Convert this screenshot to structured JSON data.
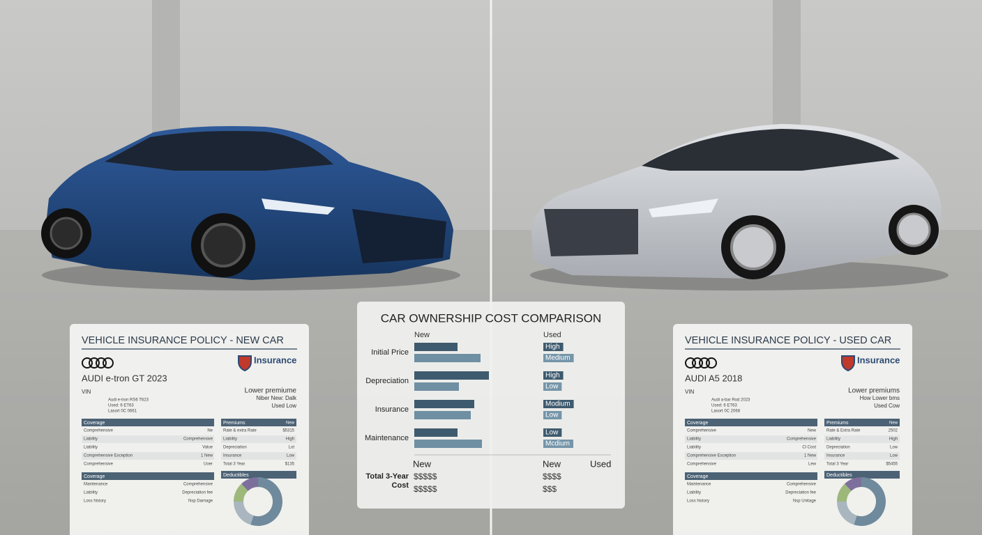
{
  "comparison": {
    "title": "CAR OWNERSHIP COST COMPARISON",
    "new_header": "New",
    "used_header": "Used",
    "rows": [
      {
        "label": "Initial Price",
        "used": [
          "High",
          "Medium"
        ]
      },
      {
        "label": "Depreciation",
        "used": [
          "High",
          "Low"
        ]
      },
      {
        "label": "Insurance",
        "used": [
          "Modium",
          "Low"
        ]
      },
      {
        "label": "Maintenance",
        "used": [
          "Low",
          "Mcdium"
        ]
      }
    ],
    "total_label": [
      "Total 3-Year",
      "Cost"
    ],
    "total_headers": [
      "New",
      "New",
      "Used"
    ],
    "total_new": [
      "$$$$$",
      "$$$$$"
    ],
    "total_used": [
      "$$$$",
      "$$$"
    ]
  },
  "left_panel": {
    "title": "VEHICLE INSURANCE POLICY - NEW CAR",
    "brand": "Insurance",
    "model": "AUDI e-tron GT 2023",
    "vin_label": "VIN",
    "vin_lines": [
      "Audi e-tron RS6 T623",
      "Used: 6 ET63",
      "Lasort 0C 0661"
    ],
    "notes": [
      "Lower premiume",
      "Niber  New: Dalk",
      "Used Low"
    ],
    "coverage_header": "Coverage",
    "premiums_header": "Premiums",
    "premiums_sub": "New",
    "coverage_rows": [
      [
        "Comprehensive",
        "Ne"
      ],
      [
        "Liability",
        "Comprehensive"
      ],
      [
        "Liability",
        "Value"
      ],
      [
        "Comprehensive Exception",
        "1 New"
      ],
      [
        "Comprehensive",
        "Uoer"
      ]
    ],
    "premium_rows": [
      [
        "Rate & extra Rate",
        "$5315"
      ],
      [
        "Liability",
        "High"
      ],
      [
        "Depreciation",
        "Lot"
      ],
      [
        "Insurance",
        "Low"
      ],
      [
        "Total 3 Year",
        "$135"
      ]
    ],
    "section2_header": "Coverage",
    "section2_rows": [
      [
        "Maintenance",
        "Comprehensive"
      ],
      [
        "Liability",
        "Depreciation fee"
      ],
      [
        "Loss history",
        "Nsp Damage"
      ]
    ],
    "donut_header": "Deductibles"
  },
  "right_panel": {
    "title": "VEHICLE INSURANCE POLICY - USED CAR",
    "brand": "Insurance",
    "model": "AUDI A5 2018",
    "vin_label": "VIN",
    "vin_lines": [
      "Audi a-bar Rod 2023",
      "Used: 6 ET63",
      "Lasort 0C 2068"
    ],
    "notes": [
      "Lower premiums",
      "How  Lower bms",
      "Used Cow"
    ],
    "coverage_header": "Coverage",
    "premiums_header": "Premiums",
    "premiums_sub": "New",
    "coverage_rows": [
      [
        "Comprehensive",
        "New"
      ],
      [
        "Liability",
        "Comprehensive"
      ],
      [
        "Liability",
        "Cl Cost"
      ],
      [
        "Comprehensive Exception",
        "1 New"
      ],
      [
        "Comprehensive",
        "Lew"
      ]
    ],
    "premium_rows": [
      [
        "Rate & Extra Rate",
        "2502"
      ],
      [
        "Liability",
        "High"
      ],
      [
        "Depreciation",
        "Low"
      ],
      [
        "Insurance",
        "Low"
      ],
      [
        "Total 3 Year",
        "$5455"
      ]
    ],
    "section2_header": "Coverage",
    "section2_rows": [
      [
        "Maintenance",
        "Comprehensive"
      ],
      [
        "Liability",
        "Depreciation fee"
      ],
      [
        "Loss history",
        "Nsp Unitage"
      ]
    ],
    "donut_header": "Deductibles"
  }
}
